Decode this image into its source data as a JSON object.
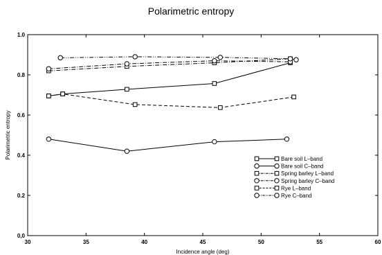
{
  "chart_data": {
    "type": "line",
    "title": "Polarimetric entropy",
    "xlabel": "Incidence angle (deg)",
    "ylabel": "Polarimetric entropy",
    "xlim": [
      30,
      60
    ],
    "ylim": [
      0,
      1
    ],
    "xticks": [
      "30",
      "35",
      "40",
      "45",
      "50",
      "55",
      "60"
    ],
    "yticks": [
      "0,0",
      "0.2",
      "0.4",
      "0.6",
      "0.8",
      "1.0"
    ],
    "grid": false,
    "legend_position": "lower-right",
    "series": [
      {
        "name": "Bare soil L–band",
        "marker": "square",
        "dash": "solid",
        "x": [
          31.8,
          33.0,
          38.5,
          46.0,
          52.5
        ],
        "y": [
          0.695,
          0.705,
          0.728,
          0.757,
          0.86
        ]
      },
      {
        "name": "Bare soil C–band",
        "marker": "circle",
        "dash": "solid",
        "x": [
          31.8,
          38.5,
          46.0,
          52.2
        ],
        "y": [
          0.48,
          0.42,
          0.467,
          0.48
        ]
      },
      {
        "name": "Spring barley L–band",
        "marker": "square",
        "dash": "dashdot",
        "x": [
          31.8,
          38.5,
          46.0,
          52.5
        ],
        "y": [
          0.82,
          0.842,
          0.86,
          0.88
        ]
      },
      {
        "name": "Spring barley C–band",
        "marker": "circle",
        "dash": "dashdot",
        "x": [
          31.8,
          38.5,
          46.0,
          52.5
        ],
        "y": [
          0.83,
          0.855,
          0.87,
          0.865
        ]
      },
      {
        "name": "Rye L–band",
        "marker": "square",
        "dash": "dashed",
        "x": [
          31.8,
          33.0,
          39.2,
          46.5,
          52.8
        ],
        "y": [
          0.695,
          0.705,
          0.652,
          0.637,
          0.69
        ]
      },
      {
        "name": "Rye C–band",
        "marker": "circle",
        "dash": "dashdotdot",
        "x": [
          32.8,
          39.2,
          46.5,
          52.5,
          53.0
        ],
        "y": [
          0.885,
          0.89,
          0.887,
          0.88,
          0.875
        ]
      }
    ]
  }
}
